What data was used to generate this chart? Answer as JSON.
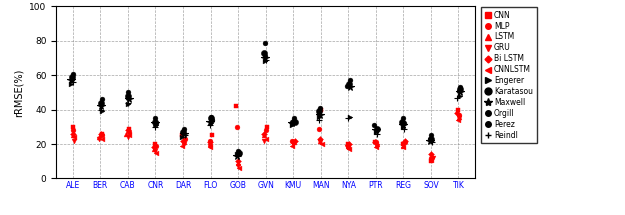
{
  "stations": [
    "ALE",
    "BER",
    "CAB",
    "CNR",
    "DAR",
    "FLO",
    "GOB",
    "GVN",
    "KMU",
    "MAN",
    "NYA",
    "PTR",
    "REG",
    "SOV",
    "TIK"
  ],
  "models": {
    "CNN": [
      30,
      26,
      29,
      20,
      25,
      25,
      42,
      30,
      21,
      40,
      20,
      21,
      20,
      10,
      40
    ],
    "MLP": [
      28,
      25,
      27,
      19,
      23,
      22,
      30,
      28,
      22,
      29,
      19,
      21,
      21,
      12,
      37
    ],
    "LSTM": [
      25,
      24,
      26,
      17,
      21,
      20,
      9,
      25,
      21,
      22,
      19,
      20,
      19,
      13,
      36
    ],
    "GRU": [
      22,
      23,
      24,
      16,
      20,
      19,
      7,
      22,
      20,
      21,
      18,
      19,
      20,
      12,
      35
    ],
    "BiLSTM": [
      26,
      26,
      28,
      18,
      22,
      21,
      10,
      26,
      22,
      23,
      20,
      21,
      22,
      14,
      38
    ],
    "CNNLSTM": [
      24,
      23,
      25,
      15,
      19,
      18,
      6,
      23,
      19,
      20,
      17,
      18,
      18,
      11,
      34
    ],
    "Engerer": [
      55,
      39,
      43,
      31,
      24,
      32,
      14,
      68,
      31,
      36,
      36,
      27,
      30,
      22,
      48
    ],
    "Karatasou": [
      59,
      44,
      48,
      33,
      27,
      35,
      15,
      73,
      33,
      39,
      55,
      29,
      33,
      23,
      52
    ],
    "Maxwell": [
      57,
      42,
      46,
      32,
      26,
      33,
      13,
      70,
      32,
      37,
      53,
      28,
      31,
      22,
      50
    ],
    "Orgill": [
      61,
      46,
      50,
      35,
      29,
      36,
      16,
      79,
      35,
      41,
      57,
      31,
      35,
      25,
      53
    ],
    "Perez": [
      58,
      43,
      47,
      32,
      27,
      34,
      14,
      71,
      33,
      38,
      54,
      29,
      32,
      23,
      51
    ],
    "Reindl": [
      56,
      40,
      44,
      30,
      25,
      31,
      13,
      69,
      32,
      34,
      35,
      26,
      29,
      21,
      47
    ]
  },
  "red_color": "#ff0000",
  "black_color": "#000000",
  "ylabel": "rRMSE(%)",
  "ylim": [
    0,
    100
  ],
  "yticks": [
    0,
    20,
    40,
    60,
    80,
    100
  ],
  "figwidth": 6.25,
  "figheight": 2.15,
  "dpi": 100
}
